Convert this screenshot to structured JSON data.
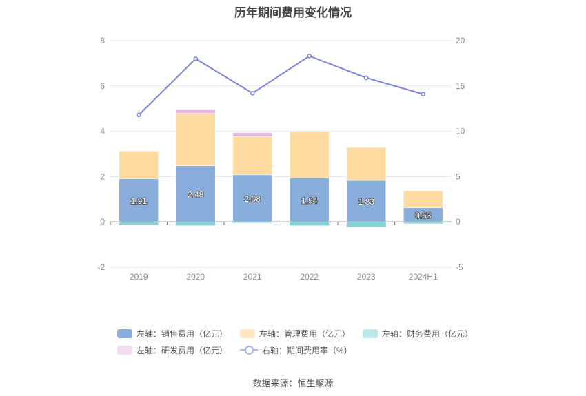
{
  "chart_data": {
    "type": "bar",
    "title": "历年期间费用变化情况",
    "categories": [
      "2019",
      "2020",
      "2021",
      "2022",
      "2023",
      "2024H1"
    ],
    "left_axis": {
      "ylim": [
        -2,
        8
      ],
      "ticks": [
        "-2",
        "0",
        "2",
        "4",
        "6",
        "8"
      ]
    },
    "right_axis": {
      "ylim": [
        -5,
        20
      ],
      "ticks": [
        "-5",
        "0",
        "5",
        "10",
        "15",
        "20"
      ]
    },
    "series": [
      {
        "name": "左轴：销售费用（亿元）",
        "type": "bar",
        "color": "#8aaedc",
        "values": [
          1.91,
          2.48,
          2.08,
          1.94,
          1.83,
          0.63
        ],
        "labels": [
          "1.91",
          "2.48",
          "2.08",
          "1.94",
          "1.83",
          "0.63"
        ]
      },
      {
        "name": "左轴：管理费用（亿元）",
        "type": "bar",
        "color": "#fedba0",
        "values": [
          1.22,
          2.31,
          1.69,
          2.02,
          1.46,
          0.74
        ]
      },
      {
        "name": "左轴：财务费用（亿元）",
        "type": "bar",
        "color": "#86d2d6",
        "values": [
          -0.12,
          -0.16,
          -0.04,
          -0.16,
          -0.22,
          -0.07
        ]
      },
      {
        "name": "左轴：研发费用（亿元）",
        "type": "bar",
        "color": "#e8b4df",
        "values": [
          0,
          0.18,
          0.17,
          0,
          0,
          0
        ]
      },
      {
        "name": "右轴：期间费用率（%）",
        "type": "line",
        "color": "#7a80e6",
        "values": [
          11.8,
          18.0,
          14.2,
          18.3,
          15.9,
          14.1
        ]
      }
    ]
  },
  "legend": {
    "items": [
      {
        "label": "左轴：销售费用（亿元）",
        "color": "#8aaedc"
      },
      {
        "label": "左轴：管理费用（亿元）",
        "color": "#fee6c2"
      },
      {
        "label": "左轴：财务费用（亿元）",
        "color": "#bde8ea"
      },
      {
        "label": "左轴：研发费用（亿元）",
        "color": "#f3dcef"
      },
      {
        "label": "右轴：期间费用率（%）",
        "color": "#aab4f0"
      }
    ]
  },
  "source": "数据来源：恒生聚源"
}
